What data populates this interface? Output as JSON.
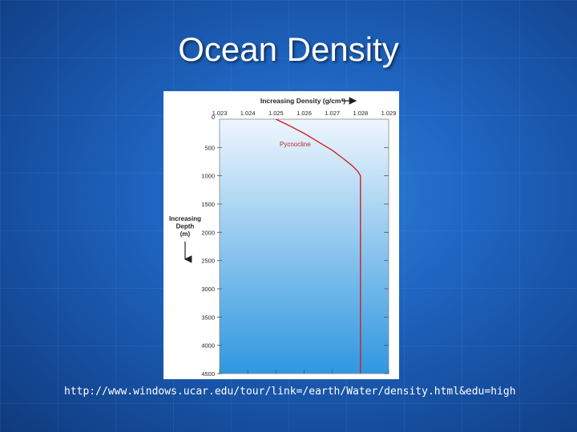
{
  "slide": {
    "title": "Ocean Density",
    "source_url": "http://www.windows.ucar.edu/tour/link=/earth/Water/density.html&edu=high"
  },
  "colors": {
    "background": "#1f66c2",
    "plot_top": "#eef6fd",
    "plot_bottom": "#2f97e0",
    "curve": "#cc2222"
  },
  "chart_data": {
    "type": "line",
    "title": "",
    "xlabel": "Increasing Density (g/cm³)",
    "ylabel_lines": [
      "Increasing",
      "Depth",
      "(m)"
    ],
    "annotation": "Pycnocline",
    "xlim": [
      1.023,
      1.029
    ],
    "ylim": [
      0,
      4500
    ],
    "y_inverted": true,
    "x_ticks": [
      "1.023",
      "1.024",
      "1.025",
      "1.026",
      "1.027",
      "1.028",
      "1.029"
    ],
    "y_ticks": [
      "0",
      "500",
      "1000",
      "1500",
      "2000",
      "2500",
      "3000",
      "3500",
      "4000",
      "4500"
    ],
    "series": [
      {
        "x": [
          1.025,
          1.0255,
          1.026,
          1.0265,
          1.027,
          1.0274,
          1.0277,
          1.0279,
          1.028,
          1.028,
          1.028
        ],
        "y": [
          0,
          120,
          250,
          400,
          550,
          700,
          820,
          920,
          1000,
          2500,
          4500
        ]
      }
    ]
  }
}
